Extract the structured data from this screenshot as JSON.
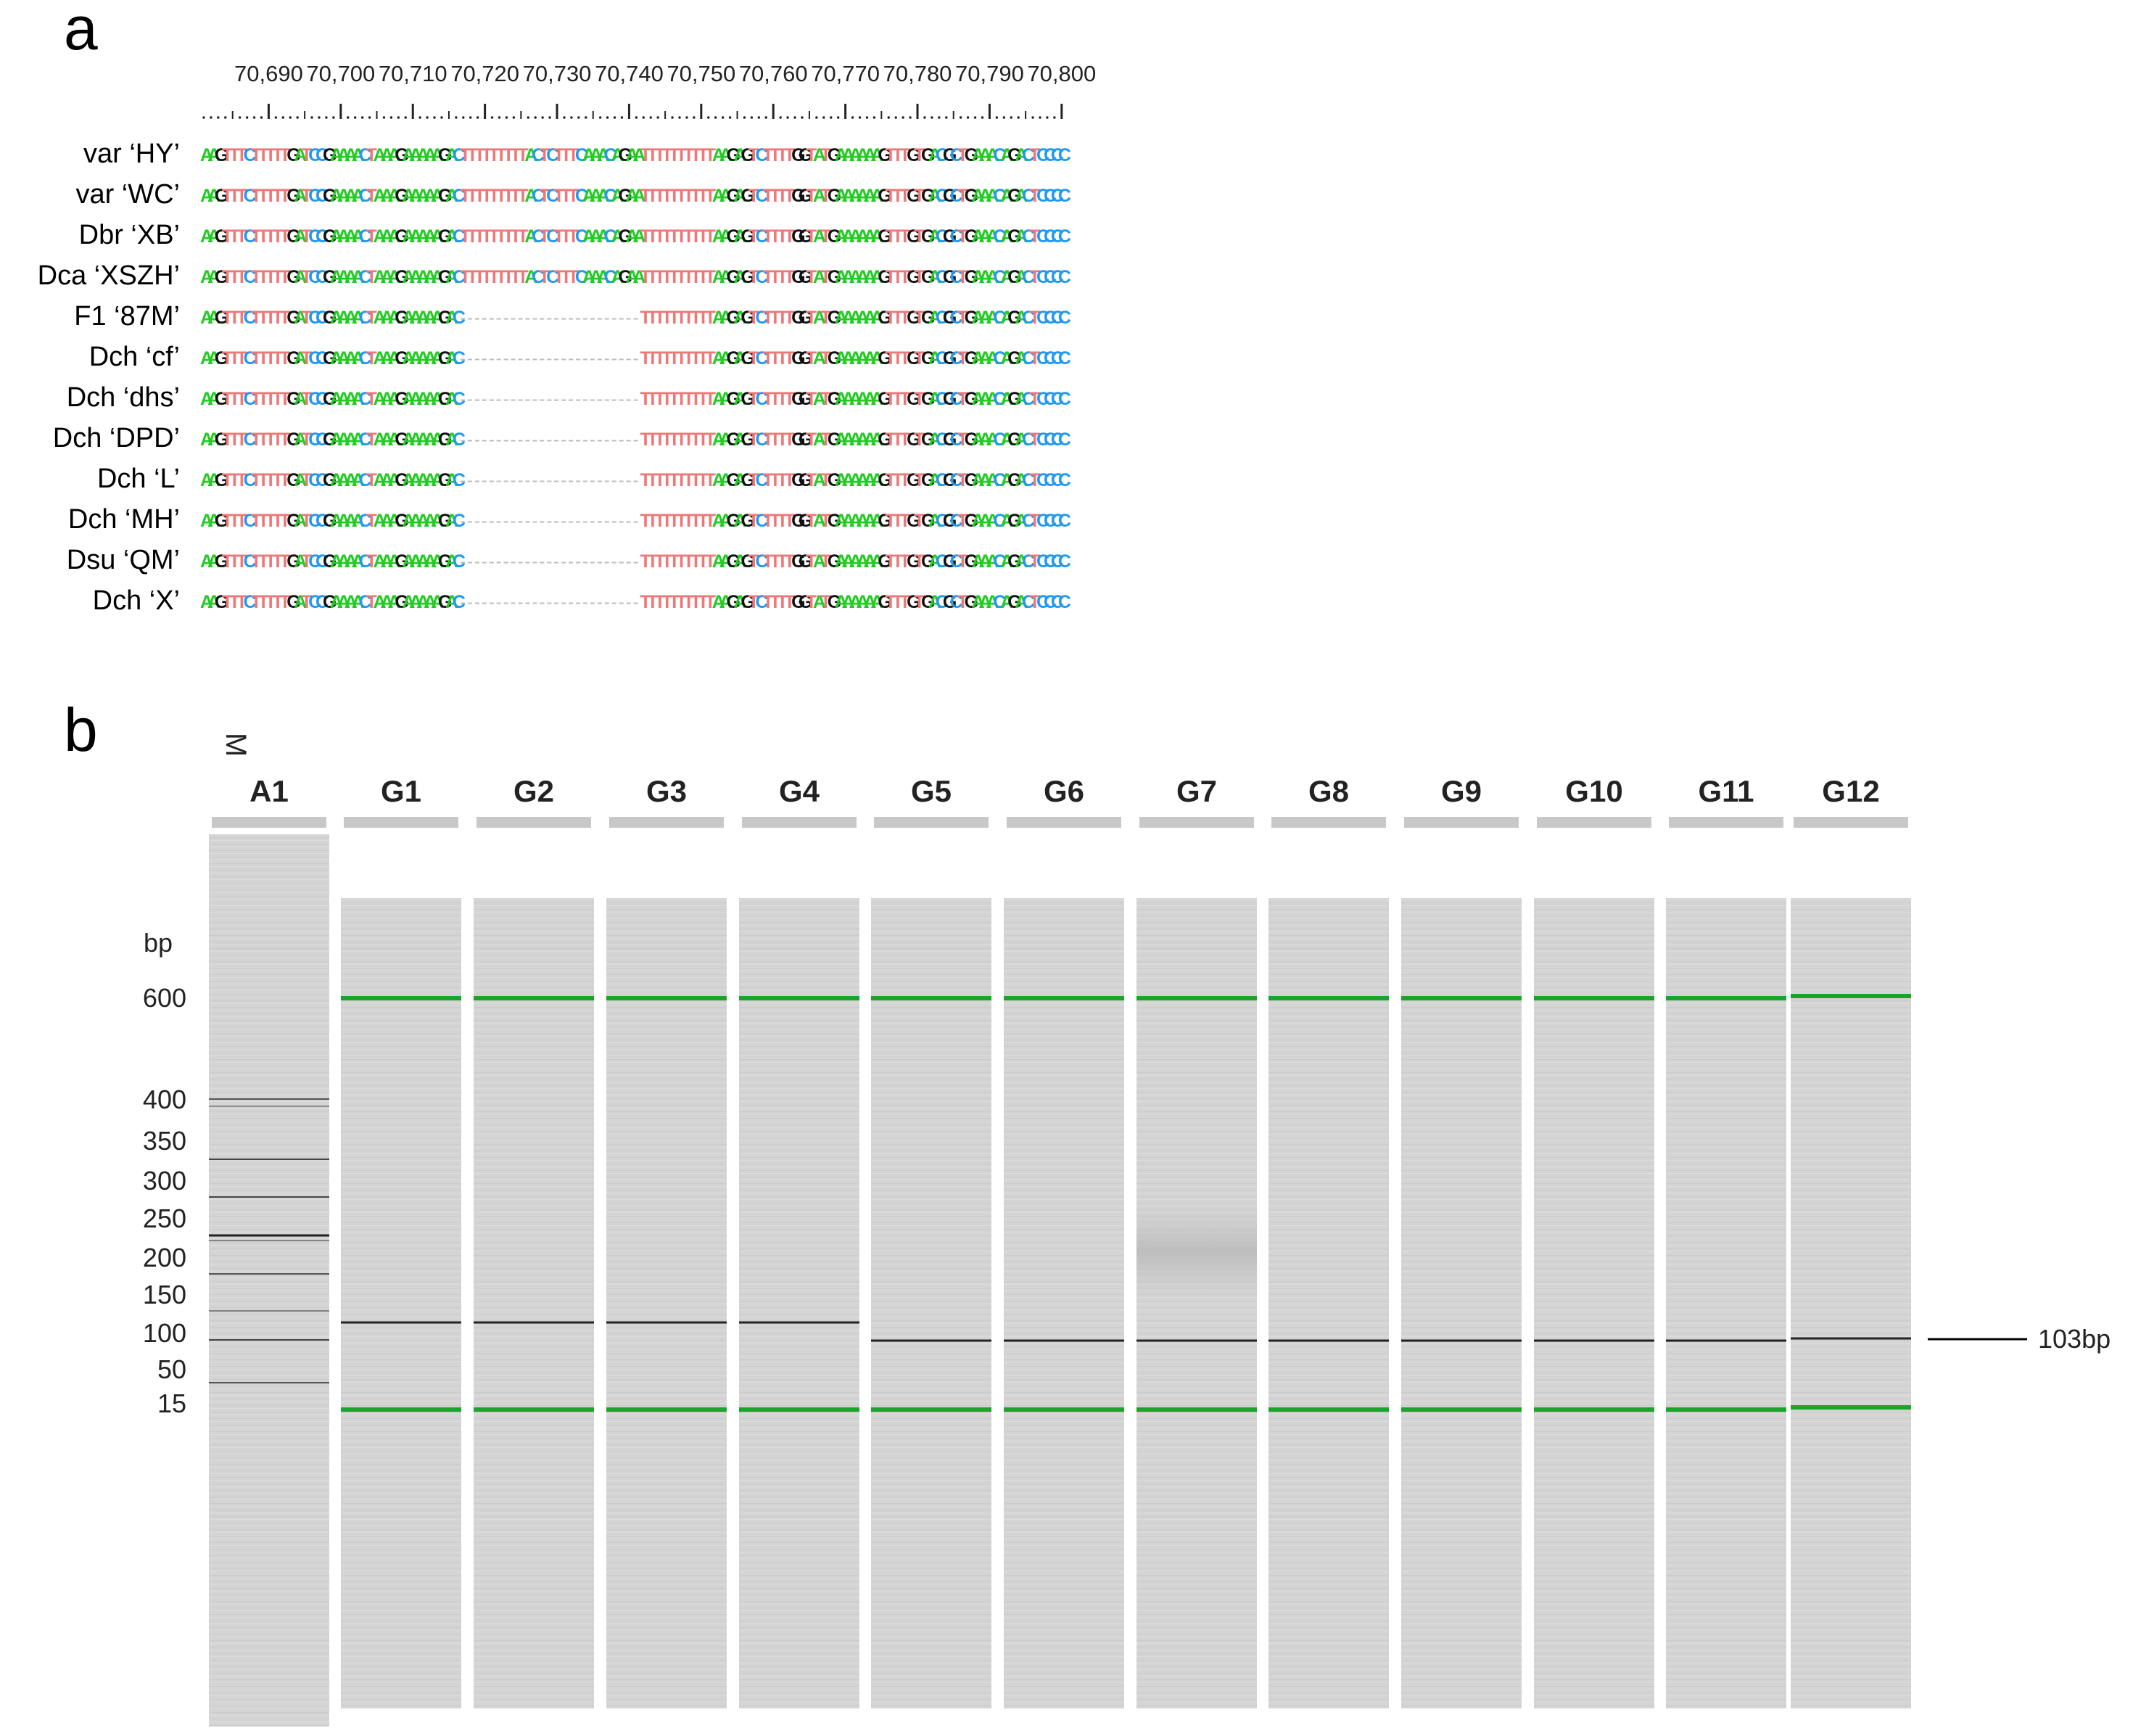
{
  "panel_a": {
    "letter": "a",
    "positions": [
      "70,690",
      "70,700",
      "70,710",
      "70,720",
      "70,730",
      "70,740",
      "70,750",
      "70,760",
      "70,770",
      "70,780",
      "70,790",
      "70,800"
    ],
    "colors": {
      "A": "#22cc22",
      "G": "#111111",
      "T": "#ee7777",
      "C": "#2299ee",
      "gap": "#bbbbbb"
    },
    "rows": [
      {
        "label": "var ‘HY’",
        "seq": "AAGTTTCTTTTTGATCCGAAAACTAAAGAAAAAGACTTTTTTTTTACTCTTTCAAACAGAATTTTTTTTTTAAGAGTCTTTTGGTATGAAAAAAGTTTGTGACGCTGAAACAGACTCCCC"
      },
      {
        "label": "var ‘WC’",
        "seq": "AAGTTTCTTTTTGATCCGAAAACTAAAGAAAAAGACTTTTTTTTTACTCTTTCAAACAGAATTTTTTTTTTAAGAGTCTTTTGGTATGAAAAAAGTTTGTGACGCTGAAACAGACTCCCC"
      },
      {
        "label": "Dbr ‘XB’",
        "seq": "AAGTTTCTTTTTGATCCGAAAACTAAAGAAAAAGACTTTTTTTTTACTCTTTCAAACAGAATTTTTTTTTTAAGAGTCTTTTGGTATGAAAAAAGTTTGTGACGCTGAAACAGACTCCCC"
      },
      {
        "label": "Dca ‘XSZH’",
        "seq": "AAGTTTCTTTTTGATCCGAAAACTAAAGAAAAAGACTTTTTTTTTACTCTTTCAAACAGAATTTTTTTTTTAAGAGTCTTTTGGTATGAAAAAAGTTTGTGACGCTGAAACAGACTCCCC"
      },
      {
        "label": "F1 ‘87M’",
        "seq": "AAGTTTCTTTTTGATCCGAAAACTAAAGAAAAAGAC-------------------------TTTTTTTTTTAAGAGTCTTTTGGTATGAAAAAAGTTTGTGACGCTGAAACAGACTCCCC"
      },
      {
        "label": "Dch ‘cf’",
        "seq": "AAGTTTCTTTTTGATCCGAAAACTAAAGAAAAAGAC-------------------------TTTTTTTTTTAAGAGTCTTTTGGTATGAAAAAAGTTTGTGACGCTGAAACAGACTCCCC"
      },
      {
        "label": "Dch ‘dhs’",
        "seq": "AAGTTTCTTTTTGATCCGAAAACTAAAGAAAAAGAC-------------------------TTTTTTTTTTAAGAGTCTTTTGGTATGAAAAAAGTTTGTGACGCTGAAACAGACTCCCC"
      },
      {
        "label": "Dch ‘DPD’",
        "seq": "AAGTTTCTTTTTGATCCGAAAACTAAAGAAAAAGAC-------------------------TTTTTTTTTTAAGAGTCTTTTGGTATGAAAAAAGTTTGTGACGCTGAAACAGACTCCCC"
      },
      {
        "label": "Dch ‘L’",
        "seq": "AAGTTTCTTTTTGATCCGAAAACTAAAGAAAAAGAC-------------------------TTTTTTTTTTAAGAGTCTTTTGGTATGAAAAAAGTTTGTGACGCTGAAACAGACTCCCC"
      },
      {
        "label": "Dch ‘MH’",
        "seq": "AAGTTTCTTTTTGATCCGAAAACTAAAGAAAAAGAC-------------------------TTTTTTTTTTAAGAGTCTTTTGGTATGAAAAAAGTTTGTGACGCTGAAACAGACTCCCC"
      },
      {
        "label": "Dsu ‘QM’",
        "seq": "AAGTTTCTTTTTGATCCGAAAACTAAAGAAAAAGAC-------------------------TTTTTTTTTTAAGAGTCTTTTGGTATGAAAAAAGTTTGTGACGCTGAAACAGACTCCCC"
      },
      {
        "label": "Dch ‘X’",
        "seq": "AAGTTTCTTTTTGATCCGAAAACTAAAGAAAAAGAC-------------------------TTTTTTTTTTAAGAGTCTTTTGGTATGAAAAAAGTTTGTGACGCTGAAACAGACTCCCC"
      }
    ]
  },
  "panel_b": {
    "letter": "b",
    "marker_symbol": "M",
    "unit": "bp",
    "ladder_marks": [
      "600",
      "400",
      "350",
      "300",
      "250",
      "200",
      "150",
      "100",
      "50",
      "15"
    ],
    "lanes": [
      "A1",
      "G1",
      "G2",
      "G3",
      "G4",
      "G5",
      "G6",
      "G7",
      "G8",
      "G9",
      "G10",
      "G11",
      "G12"
    ],
    "annotation": "103bp",
    "marker_color": "#1aa52a",
    "lane_color": "#d4d4d4"
  }
}
